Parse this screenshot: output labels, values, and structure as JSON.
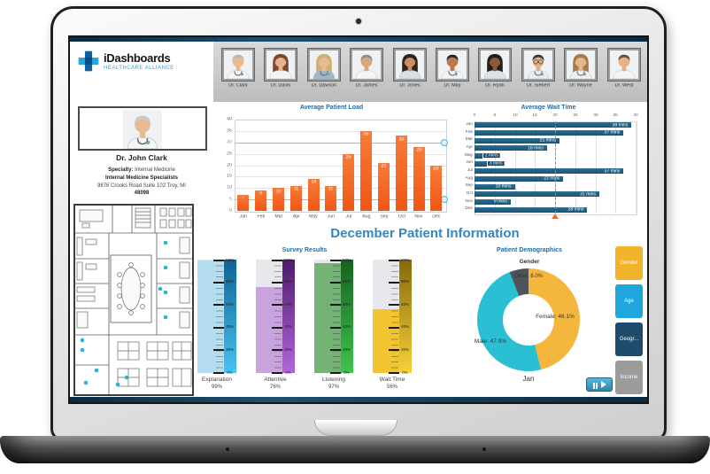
{
  "brand": {
    "name": "iDashboards",
    "tagline": "HEALTHCARE ALLIANCE"
  },
  "profile": {
    "name": "Dr. John Clark",
    "specialty_label": "Specialty:",
    "specialty": "Internal Medicine",
    "practice": "Internal Medicine Specialists",
    "address_line1": "9876 Crooks Road Suite 102 Troy, MI",
    "address_line2": "48098"
  },
  "doctors": [
    {
      "name": "Dr. Clark",
      "skin": "#e8b98f",
      "hair": "#b9b9b9",
      "coat": "#f2f4f6",
      "style": "short",
      "steth": true
    },
    {
      "name": "Dr. Davis",
      "skin": "#e6b48c",
      "hair": "#7a4a2b",
      "coat": "#f2f4f6",
      "style": "long"
    },
    {
      "name": "Dr. Dawson",
      "skin": "#e8bc92",
      "hair": "#cfb06a",
      "coat": "#9fb8c8",
      "style": "long",
      "steth": true
    },
    {
      "name": "Dr. James",
      "skin": "#d9a77d",
      "hair": "#8d8d8d",
      "coat": "#f2f4f6",
      "style": "short"
    },
    {
      "name": "Dr. Jones",
      "skin": "#c98e62",
      "hair": "#2e2420",
      "coat": "#d8dee4",
      "style": "long"
    },
    {
      "name": "Dr. May",
      "skin": "#b97a4e",
      "hair": "#26211e",
      "coat": "#f2f4f6",
      "style": "short",
      "steth": true
    },
    {
      "name": "Dr. Ryan",
      "skin": "#8a5a3a",
      "hair": "#241d1a",
      "coat": "#dde2e6",
      "style": "long"
    },
    {
      "name": "Dr. Siebert",
      "skin": "#e0af85",
      "hair": "#3f3a35",
      "coat": "#e8ecef",
      "style": "short",
      "glasses": true,
      "steth": true
    },
    {
      "name": "Dr. Wayne",
      "skin": "#e6b790",
      "hair": "#a8784a",
      "coat": "#eef1f3",
      "style": "long",
      "steth": true
    },
    {
      "name": "Dr. West",
      "skin": "#e3b188",
      "hair": "#6b4a2e",
      "coat": "#f2f4f6",
      "style": "short"
    }
  ],
  "section_title": "December Patient Information",
  "filters": [
    {
      "label": "Gender",
      "color": "#F2B32C"
    },
    {
      "label": "Age",
      "color": "#1FA6DE"
    },
    {
      "label": "Geogr...",
      "color": "#1E4D6B"
    },
    {
      "label": "Income",
      "color": "#9C9C9C"
    }
  ],
  "chart_data": [
    {
      "id": "patient_load",
      "type": "bar",
      "title": "Average Patient Load",
      "categories": [
        "Jan",
        "Feb",
        "Mar",
        "Apr",
        "May",
        "Jun",
        "Jul",
        "Aug",
        "Sep",
        "Oct",
        "Nov",
        "Dec"
      ],
      "values": [
        7,
        9,
        10,
        11,
        14,
        11,
        25,
        35,
        21,
        33,
        28,
        20
      ],
      "ylim": [
        0,
        40
      ],
      "yticks": [
        0,
        5,
        10,
        15,
        20,
        25,
        30,
        35,
        40
      ],
      "threshold_values": [
        30,
        5
      ],
      "bar_color": "#F4611E",
      "threshold_color": "#7CC6E6",
      "grid": true
    },
    {
      "id": "wait_time",
      "type": "bar-horizontal",
      "title": "Average Wait Time",
      "categories": [
        "Jan",
        "Feb",
        "Mar",
        "Apr",
        "May",
        "Jun",
        "Jul",
        "Aug",
        "Sep",
        "Oct",
        "Nov",
        "Dec"
      ],
      "values": [
        39,
        37,
        21,
        18,
        2,
        3,
        37,
        22,
        10,
        31,
        9,
        28
      ],
      "unit": "mins",
      "xlim": [
        0,
        40
      ],
      "xticks": [
        0,
        5,
        10,
        15,
        20,
        25,
        30,
        35,
        40
      ],
      "target_value": 20,
      "bar_color": "#215E80",
      "target_color": "#E4703C",
      "grid": true
    },
    {
      "id": "survey_results",
      "type": "gauge",
      "title": "Survey Results",
      "tick_labels": [
        "100%",
        "80%",
        "60%",
        "40%",
        "20%",
        "0%"
      ],
      "gauges": [
        {
          "label": "Explanation",
          "value": 99,
          "value_text": "99%",
          "fill": "#B5DDF0",
          "scale_top": "#0E6392",
          "scale_bottom": "#49C2F2"
        },
        {
          "label": "Attentive",
          "value": 76,
          "value_text": "76%",
          "fill": "#C9A3DE",
          "scale_top": "#4F1A6E",
          "scale_bottom": "#B266D9"
        },
        {
          "label": "Listening",
          "value": 97,
          "value_text": "97%",
          "fill": "#74B276",
          "scale_top": "#17621F",
          "scale_bottom": "#3FC44D"
        },
        {
          "label": "Wait Time",
          "value": 56,
          "value_text": "56%",
          "fill": "#F3C431",
          "scale_top": "#86690A",
          "scale_bottom": "#F7D23A"
        }
      ]
    },
    {
      "id": "patient_demographics",
      "type": "pie",
      "title": "Patient Demographics",
      "subtitle": "Gender",
      "slices": [
        {
          "label": "Female",
          "value": 46.1,
          "color": "#F5B63E",
          "text": "Female: 46.1%"
        },
        {
          "label": "Male",
          "value": 47.9,
          "color": "#2BBFD4",
          "text": "Male: 47.9%"
        },
        {
          "label": "Other",
          "value": 6.0,
          "color": "#4E545A",
          "text": "Other: 6.0%"
        }
      ],
      "legend_position": "none",
      "period_label": "Jan"
    }
  ]
}
